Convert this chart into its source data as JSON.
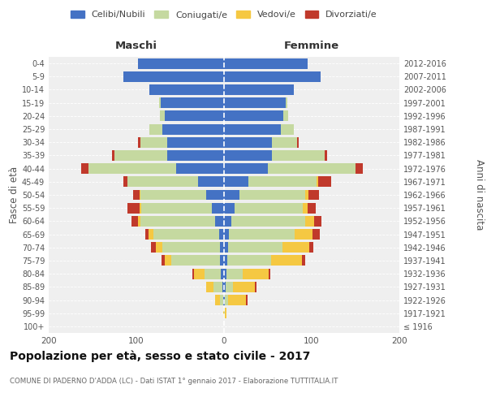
{
  "age_groups": [
    "100+",
    "95-99",
    "90-94",
    "85-89",
    "80-84",
    "75-79",
    "70-74",
    "65-69",
    "60-64",
    "55-59",
    "50-54",
    "45-49",
    "40-44",
    "35-39",
    "30-34",
    "25-29",
    "20-24",
    "15-19",
    "10-14",
    "5-9",
    "0-4"
  ],
  "birth_years": [
    "≤ 1916",
    "1917-1921",
    "1922-1926",
    "1927-1931",
    "1932-1936",
    "1937-1941",
    "1942-1946",
    "1947-1951",
    "1952-1956",
    "1957-1961",
    "1962-1966",
    "1967-1971",
    "1972-1976",
    "1977-1981",
    "1982-1986",
    "1987-1991",
    "1992-1996",
    "1997-2001",
    "2002-2006",
    "2007-2011",
    "2012-2016"
  ],
  "maschi": {
    "celibi": [
      0,
      0,
      1,
      2,
      4,
      5,
      5,
      6,
      10,
      14,
      20,
      30,
      55,
      65,
      65,
      70,
      68,
      72,
      85,
      115,
      98
    ],
    "coniugati": [
      0,
      0,
      4,
      10,
      18,
      55,
      65,
      75,
      85,
      80,
      75,
      80,
      100,
      60,
      30,
      15,
      5,
      2,
      0,
      0,
      0
    ],
    "vedovi": [
      0,
      1,
      5,
      8,
      12,
      8,
      8,
      5,
      3,
      2,
      1,
      0,
      0,
      0,
      0,
      0,
      0,
      0,
      0,
      0,
      0
    ],
    "divorziati": [
      0,
      0,
      0,
      0,
      2,
      3,
      5,
      4,
      8,
      14,
      8,
      5,
      8,
      3,
      3,
      0,
      0,
      0,
      0,
      0,
      0
    ]
  },
  "femmine": {
    "nubili": [
      0,
      0,
      1,
      2,
      3,
      4,
      5,
      6,
      8,
      12,
      18,
      28,
      50,
      55,
      55,
      65,
      68,
      70,
      80,
      110,
      95
    ],
    "coniugate": [
      0,
      1,
      4,
      8,
      18,
      50,
      62,
      75,
      85,
      78,
      75,
      78,
      100,
      60,
      28,
      15,
      5,
      2,
      0,
      0,
      0
    ],
    "vedove": [
      0,
      2,
      20,
      25,
      30,
      35,
      30,
      20,
      10,
      5,
      3,
      1,
      0,
      0,
      0,
      0,
      0,
      0,
      0,
      0,
      0
    ],
    "divorziate": [
      0,
      0,
      2,
      2,
      2,
      4,
      5,
      8,
      8,
      10,
      12,
      15,
      8,
      3,
      2,
      0,
      0,
      0,
      0,
      0,
      0
    ]
  },
  "colors": {
    "celibi": "#4472C4",
    "coniugati": "#C5D9A0",
    "vedovi": "#F5C842",
    "divorziati": "#C0392B"
  },
  "xlim": 200,
  "title": "Popolazione per età, sesso e stato civile - 2017",
  "subtitle": "COMUNE DI PADERNO D'ADDA (LC) - Dati ISTAT 1° gennaio 2017 - Elaborazione TUTTITALIA.IT",
  "ylabel_left": "Fasce di età",
  "ylabel_right": "Anni di nascita",
  "xlabel_maschi": "Maschi",
  "xlabel_femmine": "Femmine",
  "legend_labels": [
    "Celibi/Nubili",
    "Coniugati/e",
    "Vedovi/e",
    "Divorziati/e"
  ],
  "bg_color": "#ffffff",
  "plot_bg": "#efefef"
}
